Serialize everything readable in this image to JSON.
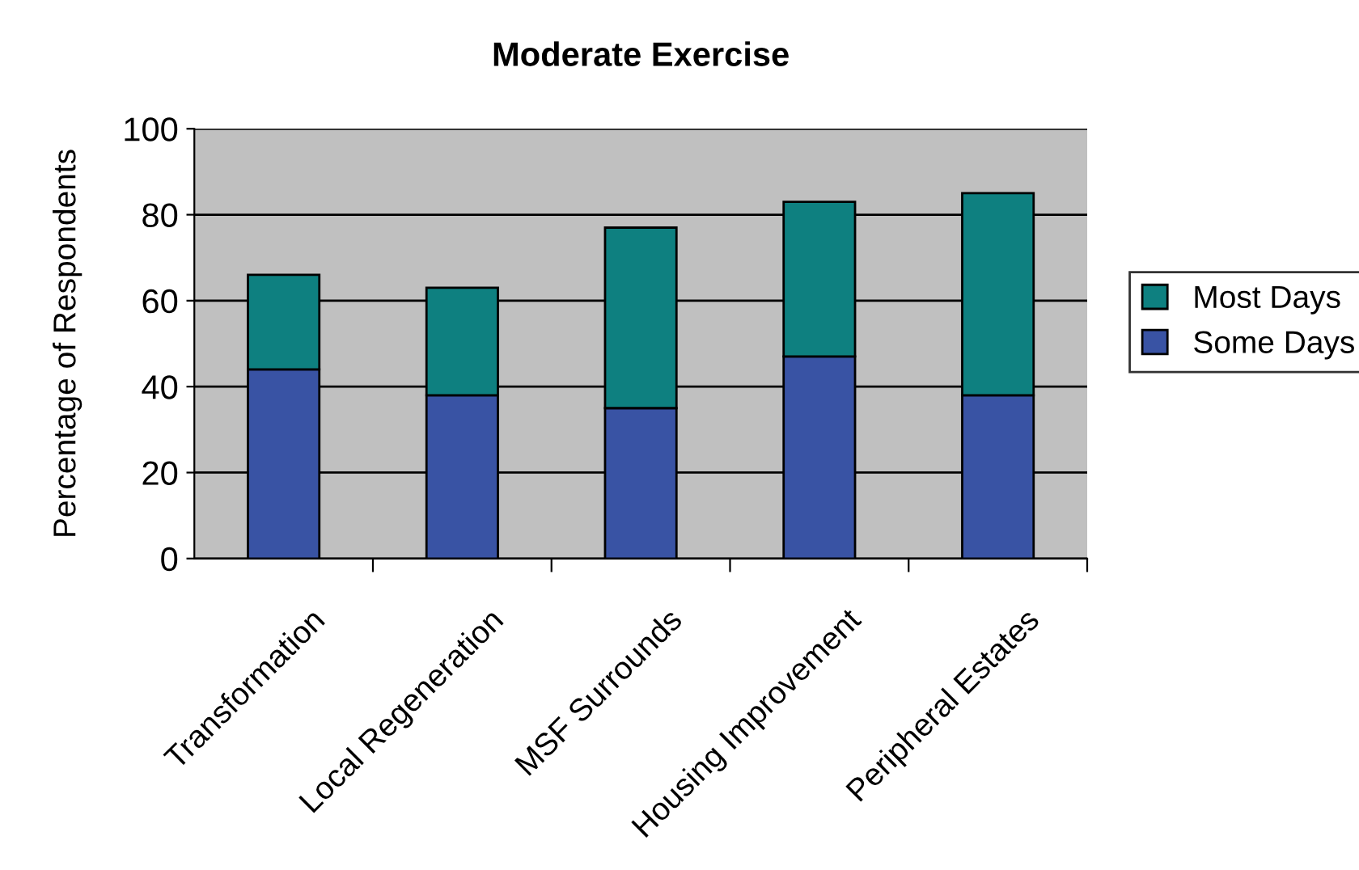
{
  "chart_data": {
    "type": "bar",
    "title": "Moderate Exercise",
    "ylabel": "Percentage of Respondents",
    "categories": [
      "Transformation",
      "Local Regeneration",
      "MSF Surrounds",
      "Housing Improvement",
      "Peripheral Estates"
    ],
    "stacked": true,
    "series": [
      {
        "name": "Some Days",
        "color": "#3953a4",
        "values": [
          44,
          38,
          35,
          47,
          38
        ]
      },
      {
        "name": "Most Days",
        "color": "#0e8080",
        "values": [
          22,
          25,
          42,
          36,
          47
        ]
      }
    ],
    "ylim": [
      0,
      100
    ],
    "yticks": [
      0,
      20,
      40,
      60,
      80,
      100
    ],
    "grid": "y",
    "legend": "right"
  }
}
